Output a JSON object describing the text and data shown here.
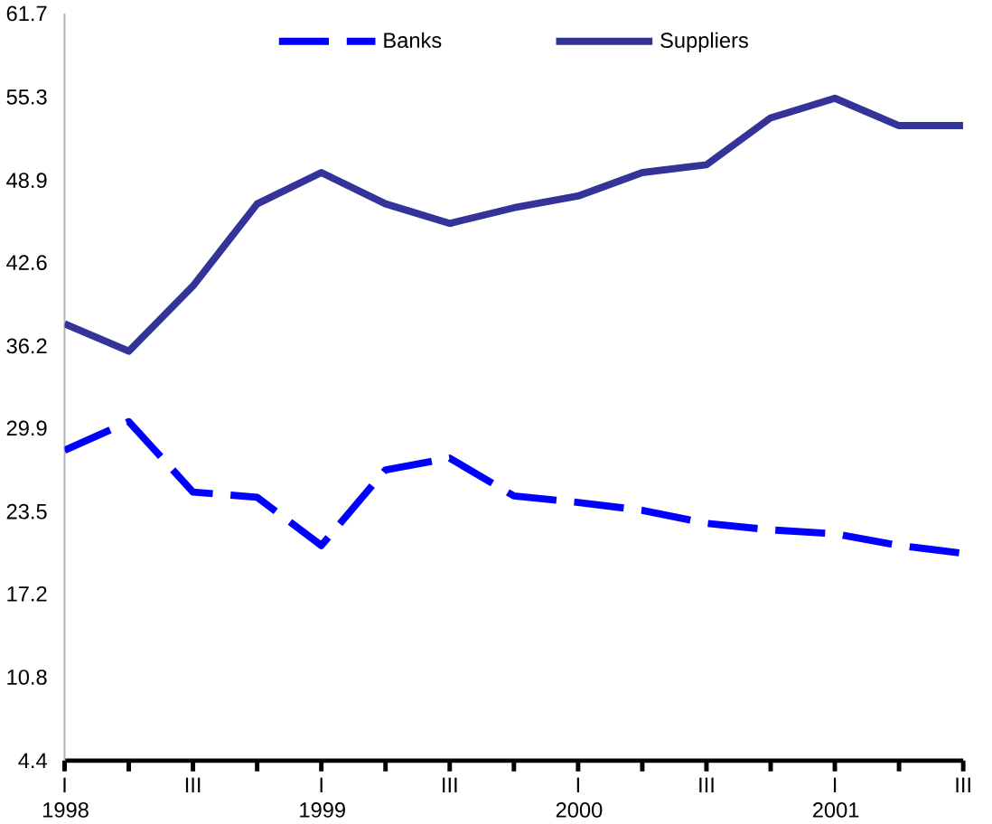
{
  "chart_data": {
    "type": "line",
    "categories": [
      "I 1998",
      null,
      "III",
      null,
      "I 1999",
      null,
      "III",
      null,
      "I 2000",
      null,
      "III",
      null,
      "I 2001",
      null,
      "III"
    ],
    "series": [
      {
        "name": "Banks",
        "color": "#0000ff",
        "line_style": "dashed",
        "values": [
          28.2,
          30.4,
          25.0,
          24.6,
          20.9,
          26.7,
          27.6,
          24.7,
          24.2,
          23.6,
          22.6,
          22.1,
          21.8,
          20.9,
          20.3
        ]
      },
      {
        "name": "Suppliers",
        "color": "#333399",
        "line_style": "solid",
        "values": [
          37.9,
          35.8,
          40.8,
          47.1,
          49.5,
          47.1,
          45.6,
          46.8,
          47.7,
          49.5,
          50.1,
          53.7,
          55.2,
          53.1,
          53.1
        ]
      }
    ],
    "ylim": [
      4.4,
      61.7
    ],
    "yticks": [
      4.4,
      10.8,
      17.2,
      23.5,
      29.9,
      36.2,
      42.6,
      48.9,
      55.3,
      61.7
    ],
    "grid": false,
    "legend": "top",
    "marker": "none"
  }
}
